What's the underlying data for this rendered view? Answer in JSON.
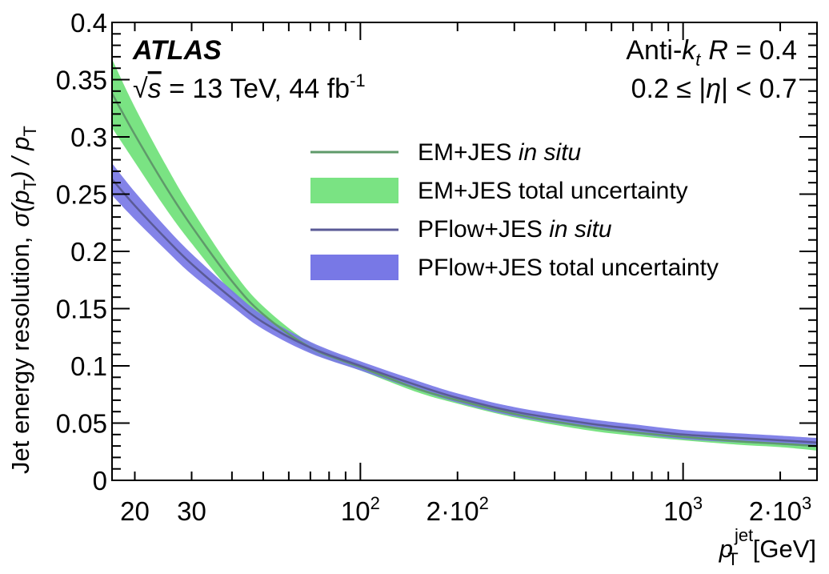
{
  "chart_data": {
    "type": "line",
    "xscale": "log",
    "xlim": [
      17,
      2600
    ],
    "ylim": [
      0,
      0.4
    ],
    "xlabel": {
      "symbol": "p",
      "sub": "T",
      "sup": "jet",
      "unit": "[GeV]"
    },
    "ylabel": {
      "prefix": "Jet energy resolution,",
      "main": "σ(p",
      "sub": "T",
      "mid": ") / p",
      "sub2": "T"
    },
    "yticks": [
      0,
      0.05,
      0.1,
      0.15,
      0.2,
      0.25,
      0.3,
      0.35,
      0.4
    ],
    "ytick_labels": [
      "0",
      "0.05",
      "0.1",
      "0.15",
      "0.2",
      "0.25",
      "0.3",
      "0.35",
      "0.4"
    ],
    "xtick_labels": [
      {
        "value": 20,
        "base": "20",
        "exp": ""
      },
      {
        "value": 30,
        "base": "30",
        "exp": ""
      },
      {
        "value": 100,
        "base": "10",
        "exp": "2"
      },
      {
        "value": 200,
        "base": "2·10",
        "exp": "2"
      },
      {
        "value": 1000,
        "base": "10",
        "exp": "3"
      },
      {
        "value": 2000,
        "base": "2·10",
        "exp": "3"
      }
    ],
    "annotations": {
      "experiment": "ATLAS",
      "energy_prefix": "√",
      "energy_s": "s",
      "energy_rest": " = 13 TeV, 44 fb",
      "energy_exp": "-1",
      "algo_a": "Anti-",
      "algo_k": "k",
      "algo_t": "t",
      "algo_R": "R",
      "algo_val": " = 0.4",
      "eta_left": "0.2 ≤ |",
      "eta_sym": "η",
      "eta_right": "| < 0.7"
    },
    "series": [
      {
        "name": "EM+JES",
        "legend_line": {
          "main": "EM+JES ",
          "italic": "in situ"
        },
        "legend_band": "EM+JES total uncertainty",
        "color": "#5f9a6a",
        "band_color": "#7ae383",
        "x": [
          17,
          20,
          25,
          30,
          40,
          50,
          70,
          100,
          150,
          200,
          300,
          500,
          700,
          1000,
          1500,
          2000,
          2600
        ],
        "y": [
          0.338,
          0.302,
          0.256,
          0.222,
          0.174,
          0.145,
          0.116,
          0.099,
          0.08,
          0.07,
          0.058,
          0.047,
          0.042,
          0.038,
          0.034,
          0.032,
          0.03
        ],
        "band_half_width": [
          0.03,
          0.024,
          0.019,
          0.015,
          0.01,
          0.007,
          0.004,
          0.003,
          0.003,
          0.003,
          0.003,
          0.003,
          0.003,
          0.003,
          0.003,
          0.003,
          0.004
        ]
      },
      {
        "name": "PFlow+JES",
        "legend_line": {
          "main": "PFlow+JES ",
          "italic": "in situ"
        },
        "legend_band": "PFlow+JES total uncertainty",
        "color": "#5a5a96",
        "band_color": "#7878e6",
        "x": [
          17,
          20,
          25,
          30,
          40,
          50,
          70,
          100,
          150,
          200,
          300,
          500,
          700,
          1000,
          1500,
          2000,
          2600
        ],
        "y": [
          0.263,
          0.24,
          0.211,
          0.189,
          0.159,
          0.138,
          0.116,
          0.1,
          0.083,
          0.072,
          0.06,
          0.05,
          0.045,
          0.04,
          0.037,
          0.035,
          0.033
        ],
        "band_half_width": [
          0.014,
          0.012,
          0.01,
          0.009,
          0.007,
          0.006,
          0.005,
          0.004,
          0.004,
          0.004,
          0.004,
          0.004,
          0.004,
          0.004,
          0.004,
          0.004,
          0.004
        ]
      }
    ]
  }
}
